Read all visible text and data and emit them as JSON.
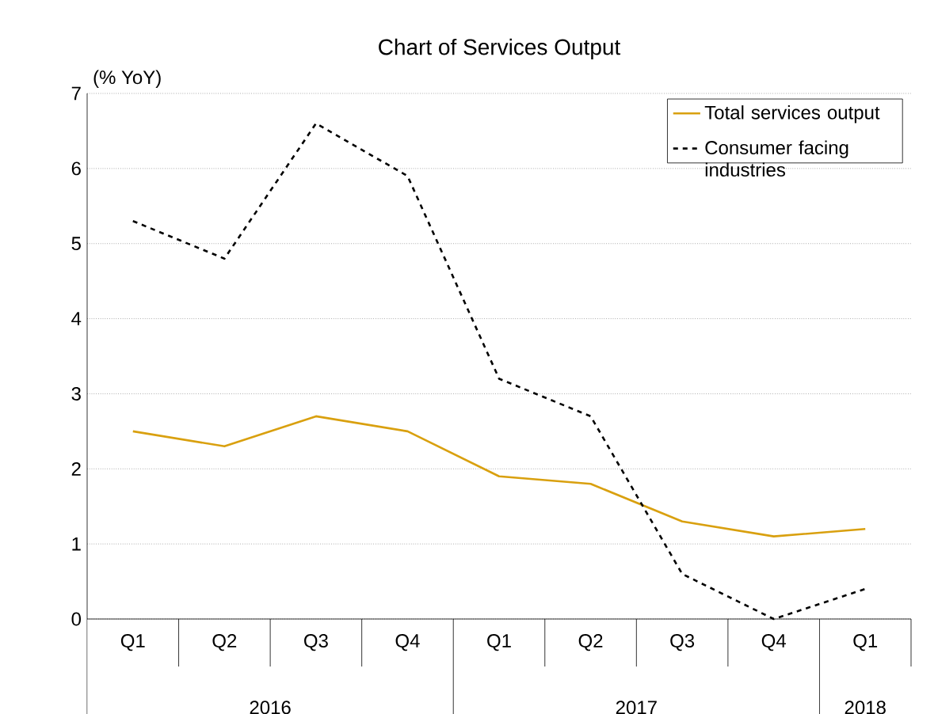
{
  "chart_data": {
    "type": "line",
    "title": "Chart of Services Output",
    "ylabel": "(% YoY)",
    "categories": [
      "Q1",
      "Q2",
      "Q3",
      "Q4",
      "Q1",
      "Q2",
      "Q3",
      "Q4",
      "Q1"
    ],
    "annotations": [
      "2016",
      "2017",
      "2018"
    ],
    "series": [
      {
        "name": "Total services output",
        "color": "#d9a00f",
        "line_style": "solid",
        "values": [
          2.5,
          2.3,
          2.7,
          2.5,
          1.9,
          1.8,
          1.3,
          1.1,
          1.2
        ]
      },
      {
        "name": "Consumer facing industries",
        "color": "#000000",
        "line_style": "dashed",
        "values": [
          5.3,
          4.8,
          6.6,
          5.9,
          3.2,
          2.7,
          0.6,
          0.0,
          0.4
        ]
      }
    ],
    "ylim": [
      0,
      7
    ],
    "yticks": [
      0,
      1,
      2,
      3,
      4,
      5,
      6,
      7
    ],
    "grid": "y",
    "legend": "top right",
    "marker": "none"
  }
}
